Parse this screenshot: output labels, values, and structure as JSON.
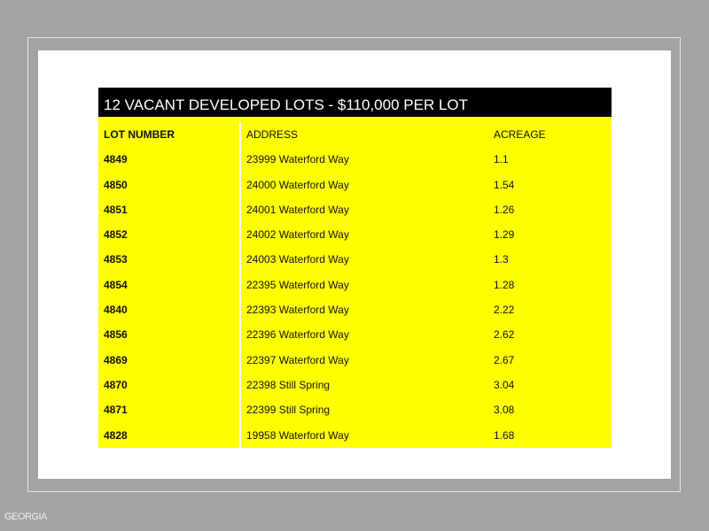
{
  "title": "12 VACANT DEVELOPED LOTS - $110,000 PER LOT",
  "columns": [
    "LOT NUMBER",
    "ADDRESS",
    "ACREAGE"
  ],
  "rows": [
    [
      "4849",
      "23999 Waterford Way",
      "1.1"
    ],
    [
      "4850",
      "24000 Waterford Way",
      "1.54"
    ],
    [
      "4851",
      "24001 Waterford Way",
      "1.26"
    ],
    [
      "4852",
      "24002 Waterford Way",
      "1.29"
    ],
    [
      "4853",
      "24003 Waterford Way",
      "1.3"
    ],
    [
      "4854",
      "22395 Waterford Way",
      "1.28"
    ],
    [
      "4840",
      "22393 Waterford Way",
      "2.22"
    ],
    [
      "4856",
      "22396 Waterford Way",
      "2.62"
    ],
    [
      "4869",
      "22397 Waterford Way",
      "2.67"
    ],
    [
      "4870",
      "22398 Still Spring",
      "3.04"
    ],
    [
      "4871",
      "22399 Still Spring",
      "3.08"
    ],
    [
      "4828",
      "19958 Waterford Way",
      "1.68"
    ]
  ],
  "logo": "GEORGIA",
  "colors": {
    "header_bg": "#000000",
    "row_bg": "#ffff00",
    "background": "#a3a3a3"
  }
}
